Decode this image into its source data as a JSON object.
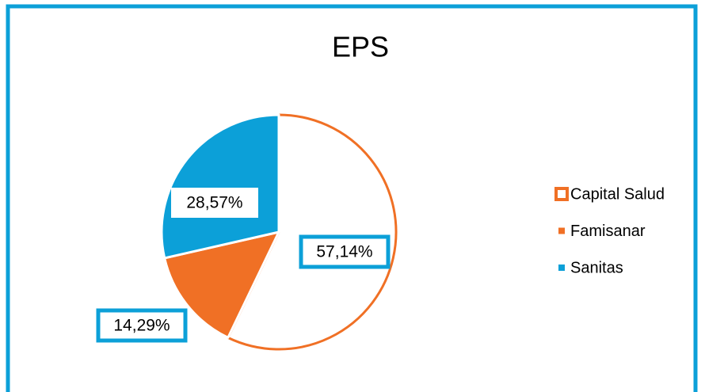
{
  "chart_data": {
    "type": "pie",
    "title": "EPS",
    "categories": [
      "Capital Salud",
      "Famisanar",
      "Sanitas"
    ],
    "values": [
      57.14,
      14.29,
      28.57
    ],
    "value_labels": [
      "57,14%",
      "14,29%",
      "28,57%"
    ],
    "fill_colors": [
      "#ffffff",
      "#f07025",
      "#0ca0d8"
    ],
    "edge_colors": [
      "#f07025",
      "#ffffff",
      "#ffffff"
    ],
    "legend": "right"
  }
}
